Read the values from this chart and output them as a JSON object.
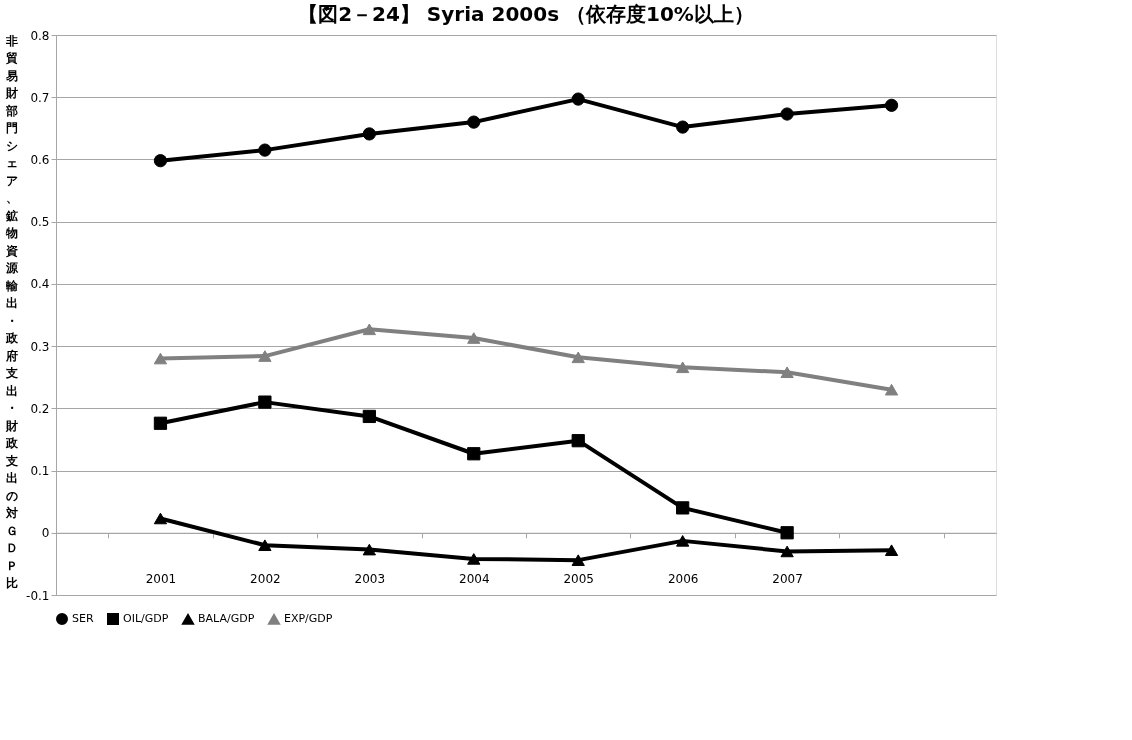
{
  "chart_data": {
    "type": "line",
    "title": "【図2－24】 Syria 2000s （依存度10%以上）",
    "ylabel": "非貿易財部門シェア、鉱物資源輸出・政府支出・財政支出の対ＧＤＰ比",
    "categories": [
      "2001",
      "2002",
      "2003",
      "2004",
      "2005",
      "2006",
      "2007",
      null
    ],
    "series": [
      {
        "name": "SER",
        "color": "#000000",
        "marker": "circle",
        "values": [
          0.598,
          0.615,
          0.641,
          0.66,
          0.697,
          0.652,
          0.673,
          0.687
        ]
      },
      {
        "name": "OIL/GDP",
        "color": "#000000",
        "marker": "square",
        "values": [
          0.176,
          0.21,
          0.187,
          0.127,
          0.148,
          0.04,
          0.0,
          null
        ]
      },
      {
        "name": "BALA/GDP",
        "color": "#000000",
        "marker": "triangle",
        "values": [
          0.023,
          -0.02,
          -0.027,
          -0.042,
          -0.044,
          -0.013,
          -0.03,
          -0.028
        ]
      },
      {
        "name": "EXP/GDP",
        "color": "#808080",
        "marker": "triangle",
        "values": [
          0.28,
          0.284,
          0.327,
          0.313,
          0.282,
          0.266,
          0.258,
          0.23
        ]
      }
    ],
    "ylim": [
      -0.1,
      0.8
    ],
    "yticks": [
      -0.1,
      0,
      0.1,
      0.2,
      0.3,
      0.4,
      0.5,
      0.6,
      0.7,
      0.8
    ],
    "grid": "y",
    "legend": "bottom",
    "line_style": "solid"
  }
}
